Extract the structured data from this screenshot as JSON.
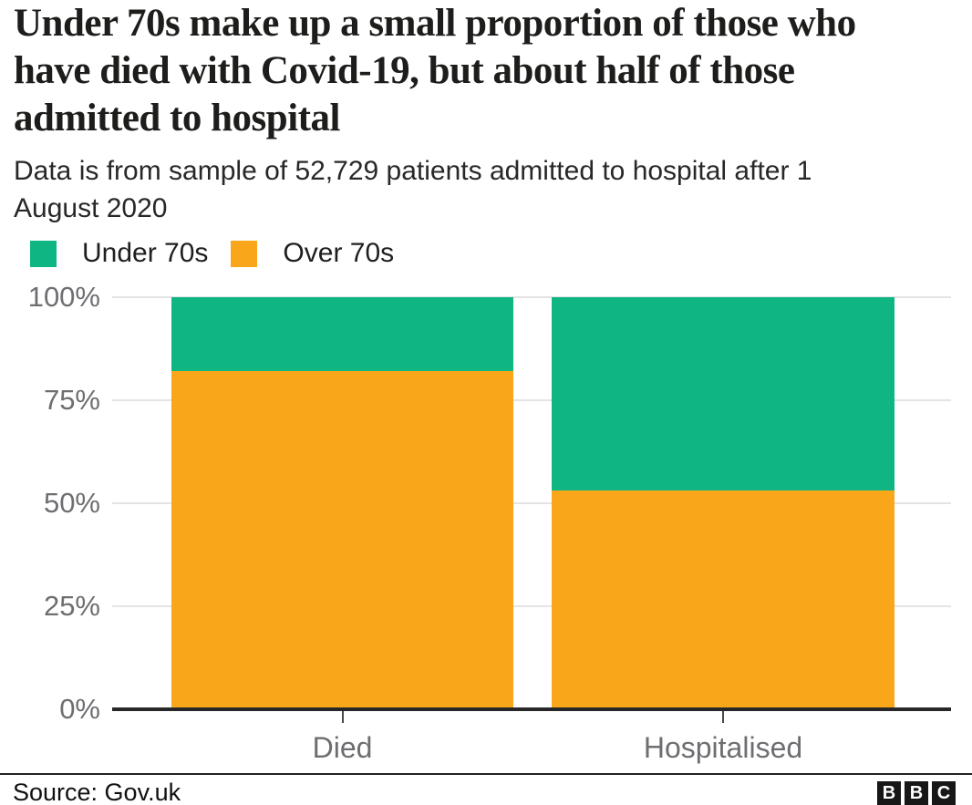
{
  "title": "Under 70s make up a small proportion of those who have died with Covid-19, but about half of those admitted to hospital",
  "subtitle": "Data is from sample of 52,729 patients admitted to hospital after 1 August 2020",
  "legend": [
    {
      "label": "Under 70s",
      "color": "#0fb583"
    },
    {
      "label": "Over 70s",
      "color": "#f9a61b"
    }
  ],
  "chart_data": {
    "type": "bar",
    "stacked": true,
    "categories": [
      "Died",
      "Hospitalised"
    ],
    "series": [
      {
        "name": "Under 70s",
        "color": "#0fb583",
        "values": [
          18,
          47
        ]
      },
      {
        "name": "Over 70s",
        "color": "#f9a61b",
        "values": [
          82,
          53
        ]
      }
    ],
    "title": "Under 70s make up a small proportion of those who have died with Covid-19, but about half of those admitted to hospital",
    "xlabel": "",
    "ylabel": "",
    "ylim": [
      0,
      100
    ],
    "ytick_labels": [
      "0%",
      "25%",
      "50%",
      "75%",
      "100%"
    ],
    "grid": true,
    "legend_position": "top-left"
  },
  "footer": {
    "source": "Source: Gov.uk",
    "logo_letters": [
      "B",
      "B",
      "C"
    ]
  }
}
